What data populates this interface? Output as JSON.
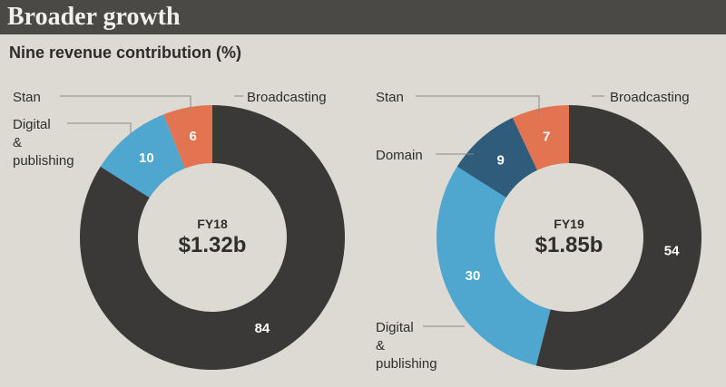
{
  "header": {
    "title": "Broader growth"
  },
  "subtitle": "Nine revenue contribution (%)",
  "colors": {
    "Broadcasting": "#3a3937",
    "Stan": "#e37452",
    "Digital & publishing": "#4fa6cf",
    "Domain": "#2f5c7a"
  },
  "chart_data": [
    {
      "type": "pie",
      "donut": true,
      "center_label": "FY18",
      "center_value": "$1.32b",
      "slices": [
        {
          "name": "Broadcasting",
          "value": 84,
          "display": "84"
        },
        {
          "name": "Digital & publishing",
          "value": 10,
          "display": "10"
        },
        {
          "name": "Stan",
          "value": 6,
          "display": "6"
        }
      ]
    },
    {
      "type": "pie",
      "donut": true,
      "center_label": "FY19",
      "center_value": "$1.85b",
      "slices": [
        {
          "name": "Broadcasting",
          "value": 54,
          "display": "54"
        },
        {
          "name": "Digital & publishing",
          "value": 30,
          "display": "30"
        },
        {
          "name": "Domain",
          "value": 9,
          "display": "9"
        },
        {
          "name": "Stan",
          "value": 7,
          "display": "7"
        }
      ]
    }
  ],
  "labels": {
    "left": {
      "stan": "Stan",
      "broadcasting": "Broadcasting",
      "digital_1": "Digital",
      "digital_2": "&",
      "digital_3": "publishing"
    },
    "right": {
      "stan": "Stan",
      "broadcasting": "Broadcasting",
      "domain": "Domain",
      "digital_1": "Digital",
      "digital_2": "&",
      "digital_3": "publishing"
    }
  }
}
